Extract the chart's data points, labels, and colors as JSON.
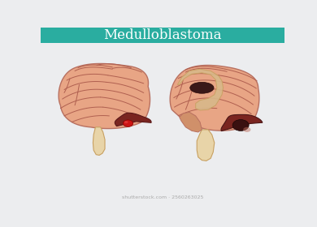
{
  "title": "Medulloblastoma",
  "title_color": "#ffffff",
  "header_color": "#2aada0",
  "bg_color": "#ecedef",
  "brain_fill": "#e8a585",
  "brain_stroke": "#b87060",
  "brain_stroke_lw": 1.0,
  "brain_light": "#f0c0a8",
  "cerebellum_fill": "#7a2520",
  "cerebellum_dark": "#3a1010",
  "tumor_red": "#cc1515",
  "brainstem_fill": "#e8d4a8",
  "brainstem_stroke": "#c8a060",
  "ventricle_fill": "#d8b88a",
  "ventricle_dark": "#3a1818",
  "pons_fill": "#d0906a",
  "sulci_color": "#b06050",
  "watermark": "shutterstock.com · 2560263025"
}
